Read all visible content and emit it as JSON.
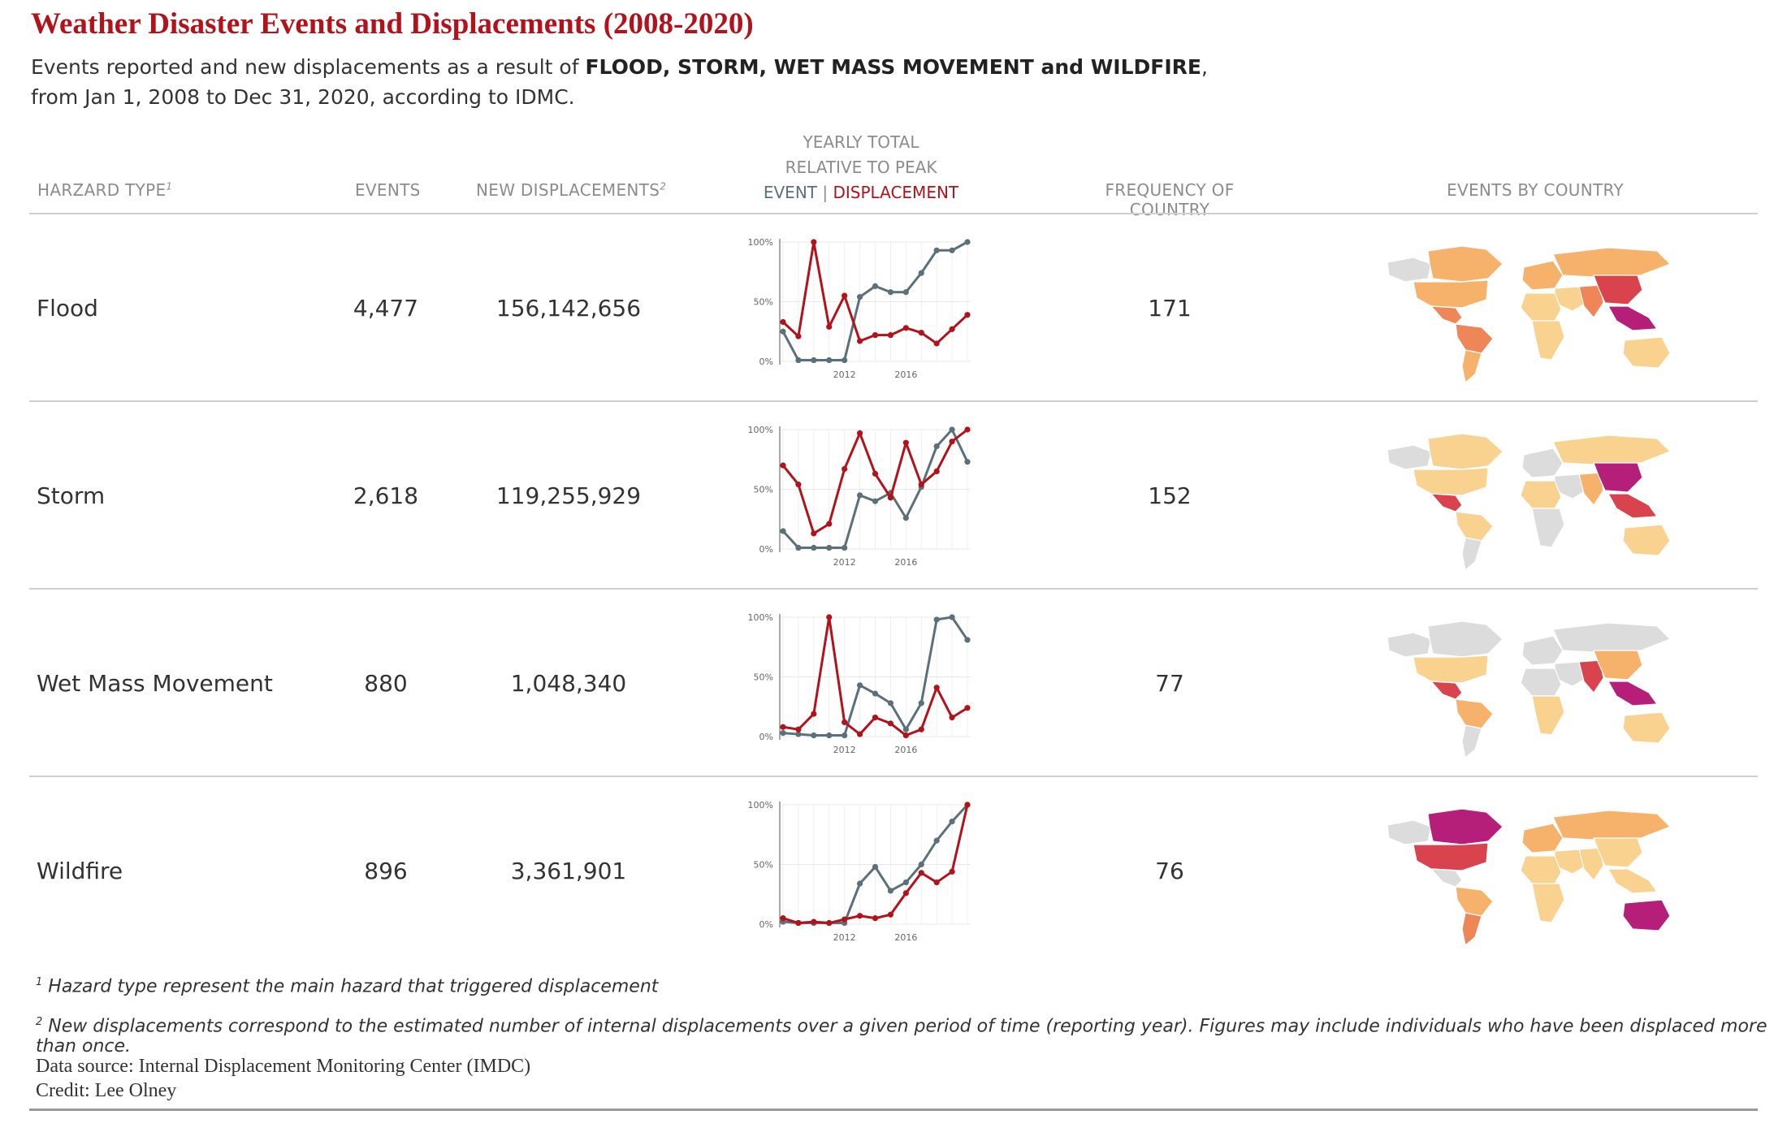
{
  "title": "Weather Disaster Events and Displacements (2008-2020)",
  "subtitle": {
    "pre": "Events reported and new displacements as a result of ",
    "bold": "FLOOD, STORM, WET MASS MOVEMENT and WILDFIRE",
    "post": ",",
    "line2": "from Jan 1, 2008 to Dec 31, 2020, according to IDMC."
  },
  "headers": {
    "hazard": "HARZARD TYPE",
    "hazard_sup": "1",
    "events": "EVENTS",
    "displacements": "NEW DISPLACEMENTS",
    "displacements_sup": "2",
    "yearly_line1": "YEARLY TOTAL",
    "yearly_line2": "RELATIVE TO PEAK",
    "event": "EVENT",
    "sep": "|",
    "displacement": "DISPLACEMENT",
    "frequency": "FREQUENCY OF COUNTRY",
    "by_country": "EVENTS BY COUNTRY"
  },
  "colors": {
    "event": "#5b7079",
    "displacement": "#b3121b",
    "title": "#b3121b",
    "map_none": "#dcdcdc",
    "map_low": "#f9d28f",
    "map_midlow": "#f6b26b",
    "map_mid": "#ee8658",
    "map_high": "#d9434d",
    "map_max": "#b51f7a"
  },
  "rows": [
    {
      "hazard": "Flood",
      "events": "4,477",
      "displacements": "156,142,656",
      "frequency": "171"
    },
    {
      "hazard": "Storm",
      "events": "2,618",
      "displacements": "119,255,929",
      "frequency": "152"
    },
    {
      "hazard": "Wet Mass Movement",
      "events": "880",
      "displacements": "1,048,340",
      "frequency": "77"
    },
    {
      "hazard": "Wildfire",
      "events": "896",
      "displacements": "3,361,901",
      "frequency": "76"
    }
  ],
  "chart_data": [
    {
      "type": "line",
      "hazard": "Flood",
      "x": [
        2008,
        2009,
        2010,
        2011,
        2012,
        2013,
        2014,
        2015,
        2016,
        2017,
        2018,
        2019,
        2020
      ],
      "ylim": [
        0,
        100
      ],
      "yticks": [
        "0%",
        "50%",
        "100%"
      ],
      "xticks": [
        "2012",
        "2016"
      ],
      "series": [
        {
          "name": "EVENT",
          "values": [
            25,
            1,
            1,
            1,
            1,
            54,
            63,
            58,
            58,
            74,
            93,
            93,
            100
          ]
        },
        {
          "name": "DISPLACEMENT",
          "values": [
            33,
            21,
            100,
            29,
            55,
            17,
            22,
            22,
            28,
            24,
            15,
            27,
            39
          ]
        }
      ]
    },
    {
      "type": "line",
      "hazard": "Storm",
      "x": [
        2008,
        2009,
        2010,
        2011,
        2012,
        2013,
        2014,
        2015,
        2016,
        2017,
        2018,
        2019,
        2020
      ],
      "ylim": [
        0,
        100
      ],
      "yticks": [
        "0%",
        "50%",
        "100%"
      ],
      "xticks": [
        "2012",
        "2016"
      ],
      "series": [
        {
          "name": "EVENT",
          "values": [
            15,
            1,
            1,
            1,
            1,
            45,
            40,
            47,
            26,
            52,
            86,
            100,
            73
          ]
        },
        {
          "name": "DISPLACEMENT",
          "values": [
            70,
            54,
            13,
            21,
            67,
            97,
            63,
            43,
            89,
            54,
            65,
            90,
            100
          ]
        }
      ]
    },
    {
      "type": "line",
      "hazard": "Wet Mass Movement",
      "x": [
        2008,
        2009,
        2010,
        2011,
        2012,
        2013,
        2014,
        2015,
        2016,
        2017,
        2018,
        2019,
        2020
      ],
      "ylim": [
        0,
        100
      ],
      "yticks": [
        "0%",
        "50%",
        "100%"
      ],
      "xticks": [
        "2012",
        "2016"
      ],
      "series": [
        {
          "name": "EVENT",
          "values": [
            3,
            2,
            1,
            1,
            1,
            43,
            36,
            28,
            6,
            28,
            98,
            100,
            81
          ]
        },
        {
          "name": "DISPLACEMENT",
          "values": [
            8,
            6,
            19,
            100,
            12,
            2,
            16,
            11,
            1,
            6,
            41,
            16,
            24
          ]
        }
      ]
    },
    {
      "type": "line",
      "hazard": "Wildfire",
      "x": [
        2008,
        2009,
        2010,
        2011,
        2012,
        2013,
        2014,
        2015,
        2016,
        2017,
        2018,
        2019,
        2020
      ],
      "ylim": [
        0,
        100
      ],
      "yticks": [
        "0%",
        "50%",
        "100%"
      ],
      "xticks": [
        "2012",
        "2016"
      ],
      "series": [
        {
          "name": "EVENT",
          "values": [
            2,
            1,
            1,
            1,
            1,
            34,
            48,
            28,
            35,
            50,
            70,
            86,
            100
          ]
        },
        {
          "name": "DISPLACEMENT",
          "values": [
            5,
            1,
            2,
            1,
            4,
            7,
            5,
            8,
            26,
            43,
            35,
            44,
            100
          ]
        }
      ]
    }
  ],
  "maps": [
    {
      "hazard": "Flood",
      "na": "map_none",
      "ca": "map_midlow",
      "us": "map_midlow",
      "cam": "map_mid",
      "sa": "map_mid",
      "sa2": "map_midlow",
      "eu": "map_midlow",
      "ru": "map_midlow",
      "af": "map_low",
      "af2": "map_low",
      "me": "map_low",
      "in": "map_mid",
      "cn": "map_high",
      "sea": "map_max",
      "au": "map_low"
    },
    {
      "hazard": "Storm",
      "na": "map_none",
      "ca": "map_low",
      "us": "map_low",
      "cam": "map_high",
      "sa": "map_low",
      "sa2": "map_none",
      "eu": "map_none",
      "ru": "map_low",
      "af": "map_low",
      "af2": "map_none",
      "me": "map_none",
      "in": "map_midlow",
      "cn": "map_max",
      "sea": "map_high",
      "au": "map_low"
    },
    {
      "hazard": "Wet Mass Movement",
      "na": "map_none",
      "ca": "map_none",
      "us": "map_low",
      "cam": "map_high",
      "sa": "map_midlow",
      "sa2": "map_none",
      "eu": "map_none",
      "ru": "map_none",
      "af": "map_none",
      "af2": "map_low",
      "me": "map_none",
      "in": "map_high",
      "cn": "map_midlow",
      "sea": "map_max",
      "au": "map_low"
    },
    {
      "hazard": "Wildfire",
      "na": "map_none",
      "ca": "map_max",
      "us": "map_high",
      "cam": "map_none",
      "sa": "map_midlow",
      "sa2": "map_mid",
      "eu": "map_midlow",
      "ru": "map_midlow",
      "af": "map_low",
      "af2": "map_low",
      "me": "map_low",
      "in": "map_low",
      "cn": "map_low",
      "sea": "map_low",
      "au": "map_max"
    }
  ],
  "footnotes": {
    "fn1_sup": "1",
    "fn1": "Hazard type represent the main hazard that triggered displacement",
    "fn2_sup": "2",
    "fn2": "New displacements correspond to the estimated number of internal displacements over a given period of time (reporting year). Figures may include individuals who have been displaced more than once.",
    "source": "Data source: Internal Displacement Monitoring Center (IMDC)",
    "credit": "Credit: Lee Olney"
  }
}
